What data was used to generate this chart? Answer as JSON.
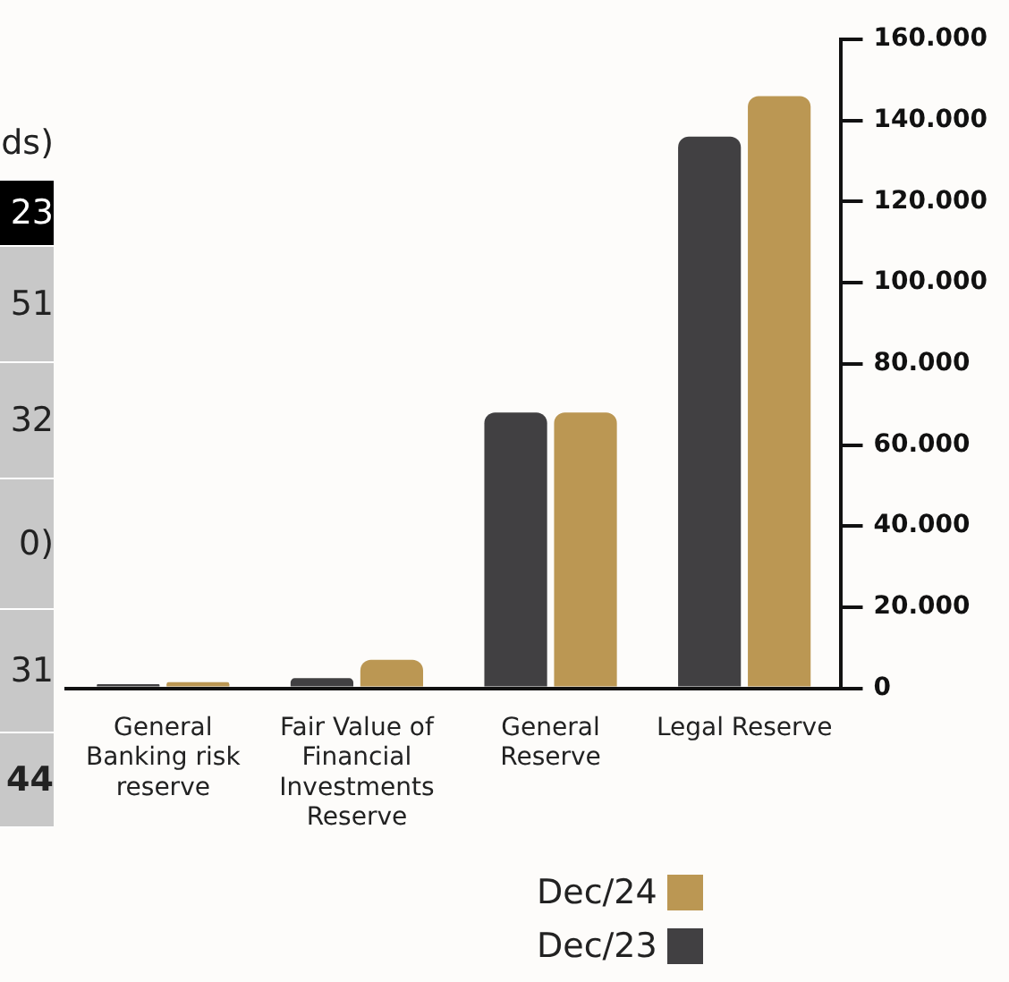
{
  "chart_data": {
    "type": "bar",
    "categories": [
      "General Banking risk reserve",
      "Fair Value of Financial Investments Reserve",
      "General Reserve",
      "Legal Reserve"
    ],
    "series": [
      {
        "name": "Dec/23",
        "color": "#414042",
        "values": [
          1000,
          2500,
          68000,
          136000
        ]
      },
      {
        "name": "Dec/24",
        "color": "#bb9753",
        "values": [
          1500,
          7000,
          68000,
          146000
        ]
      }
    ],
    "ylim": [
      0,
      160000
    ],
    "yticks": [
      {
        "value": 0,
        "label": "0"
      },
      {
        "value": 20000,
        "label": "20.000"
      },
      {
        "value": 40000,
        "label": "40.000"
      },
      {
        "value": 60000,
        "label": "60.000"
      },
      {
        "value": 80000,
        "label": "80.000"
      },
      {
        "value": 100000,
        "label": "100.000"
      },
      {
        "value": 120000,
        "label": "120.000"
      },
      {
        "value": 140000,
        "label": "140.000"
      },
      {
        "value": 160000,
        "label": "160.000"
      }
    ],
    "grid": false,
    "legend": "bottom",
    "annotations": [
      "ds)",
      "23",
      "51",
      "32",
      "0)",
      "31",
      "44"
    ]
  }
}
